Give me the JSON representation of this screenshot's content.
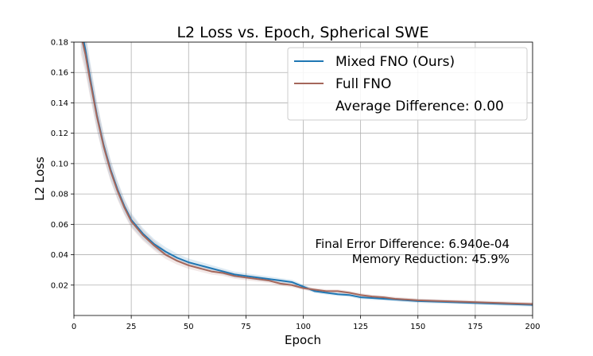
{
  "chart_data": {
    "type": "line",
    "title": "L2 Loss vs. Epoch, Spherical SWE",
    "xlabel": "Epoch",
    "ylabel": "L2 Loss",
    "xlim": [
      0,
      200
    ],
    "ylim": [
      0,
      0.18
    ],
    "xticks": [
      0,
      25,
      50,
      75,
      100,
      125,
      150,
      175,
      200
    ],
    "yticks": [
      0.02,
      0.04,
      0.06,
      0.08,
      0.1,
      0.12,
      0.14,
      0.16,
      0.18
    ],
    "xtick_labels": [
      "0",
      "25",
      "50",
      "75",
      "100",
      "125",
      "150",
      "175",
      "200"
    ],
    "ytick_labels": [
      "0.02",
      "0.04",
      "0.06",
      "0.08",
      "0.10",
      "0.12",
      "0.14",
      "0.16",
      "0.18"
    ],
    "grid": true,
    "legend_position": "top-right",
    "legend_extra": "Average Difference: 0.00",
    "annotations": [
      "Final Error Difference: 6.940e-04",
      "Memory Reduction: 45.9%"
    ],
    "series": [
      {
        "name": "Mixed FNO (Ours)",
        "color": "#1f77b4",
        "x": [
          3,
          5,
          7,
          10,
          13,
          16,
          19,
          22,
          25,
          30,
          35,
          40,
          45,
          50,
          55,
          60,
          65,
          70,
          75,
          80,
          85,
          90,
          95,
          100,
          105,
          110,
          115,
          120,
          125,
          130,
          135,
          140,
          145,
          150,
          160,
          170,
          180,
          190,
          200
        ],
        "y": [
          0.19,
          0.175,
          0.157,
          0.132,
          0.112,
          0.096,
          0.083,
          0.072,
          0.063,
          0.054,
          0.047,
          0.042,
          0.038,
          0.035,
          0.033,
          0.031,
          0.029,
          0.027,
          0.026,
          0.025,
          0.024,
          0.023,
          0.022,
          0.019,
          0.016,
          0.015,
          0.014,
          0.0135,
          0.012,
          0.0115,
          0.011,
          0.0105,
          0.01,
          0.0095,
          0.009,
          0.0085,
          0.008,
          0.0075,
          0.007
        ]
      },
      {
        "name": "Full FNO",
        "color": "#a5675b",
        "x": [
          3,
          5,
          7,
          10,
          13,
          16,
          19,
          22,
          25,
          30,
          35,
          40,
          45,
          50,
          55,
          60,
          65,
          70,
          75,
          80,
          85,
          90,
          95,
          100,
          105,
          110,
          115,
          120,
          125,
          130,
          135,
          140,
          145,
          150,
          160,
          170,
          180,
          190,
          200
        ],
        "y": [
          0.185,
          0.172,
          0.155,
          0.131,
          0.111,
          0.095,
          0.082,
          0.071,
          0.062,
          0.053,
          0.046,
          0.04,
          0.036,
          0.033,
          0.031,
          0.029,
          0.028,
          0.026,
          0.025,
          0.024,
          0.023,
          0.021,
          0.02,
          0.018,
          0.017,
          0.016,
          0.016,
          0.015,
          0.0135,
          0.0125,
          0.012,
          0.011,
          0.0105,
          0.01,
          0.0095,
          0.009,
          0.0085,
          0.008,
          0.0075
        ]
      }
    ]
  }
}
